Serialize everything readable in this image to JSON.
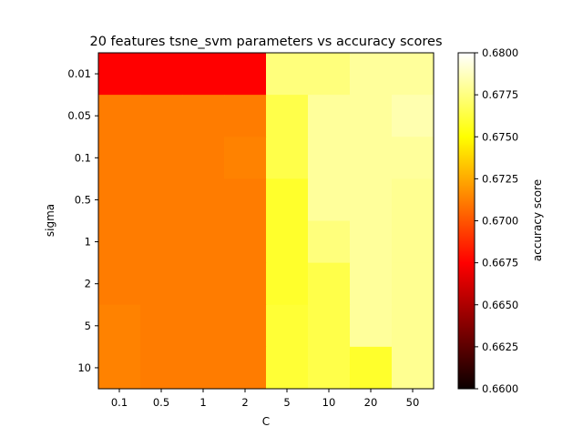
{
  "chart_data": {
    "type": "heatmap",
    "title": "20 features tsne_svm parameters vs accuracy scores",
    "xlabel": "C",
    "ylabel": "sigma",
    "x_categories": [
      "0.1",
      "0.5",
      "1",
      "2",
      "5",
      "10",
      "20",
      "50"
    ],
    "y_categories": [
      "0.01",
      "0.05",
      "0.1",
      "0.5",
      "1",
      "2",
      "5",
      "10"
    ],
    "values": [
      [
        0.667,
        0.667,
        0.667,
        0.667,
        0.6774,
        0.6774,
        0.678,
        0.678
      ],
      [
        0.671,
        0.671,
        0.671,
        0.671,
        0.6764,
        0.678,
        0.678,
        0.6784
      ],
      [
        0.671,
        0.671,
        0.671,
        0.6712,
        0.6764,
        0.678,
        0.678,
        0.678
      ],
      [
        0.671,
        0.671,
        0.671,
        0.671,
        0.6758,
        0.678,
        0.678,
        0.6778
      ],
      [
        0.671,
        0.671,
        0.671,
        0.671,
        0.6758,
        0.6774,
        0.678,
        0.6778
      ],
      [
        0.671,
        0.671,
        0.671,
        0.671,
        0.6758,
        0.6764,
        0.678,
        0.6778
      ],
      [
        0.6712,
        0.671,
        0.671,
        0.671,
        0.676,
        0.6764,
        0.678,
        0.6778
      ],
      [
        0.6712,
        0.671,
        0.671,
        0.671,
        0.676,
        0.6764,
        0.6758,
        0.6778
      ]
    ],
    "colormap": "hot",
    "vmin": 0.66,
    "vmax": 0.68,
    "colorbar_label": "accuracy score",
    "colorbar_ticks": [
      "0.6600",
      "0.6625",
      "0.6650",
      "0.6675",
      "0.6700",
      "0.6725",
      "0.6750",
      "0.6775",
      "0.6800"
    ],
    "grid": false
  }
}
